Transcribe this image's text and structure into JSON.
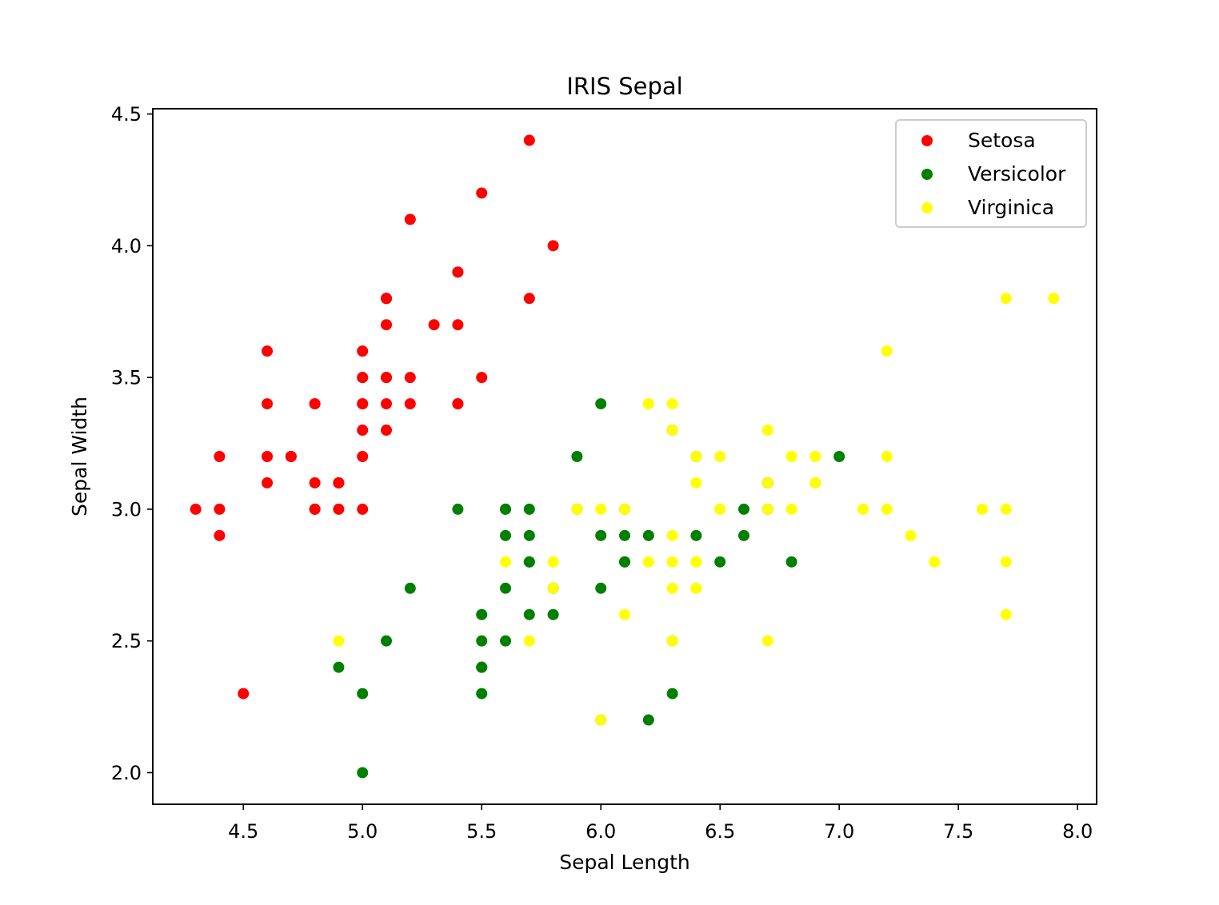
{
  "chart_data": {
    "type": "scatter",
    "title": "IRIS Sepal",
    "xlabel": "Sepal Length",
    "ylabel": "Sepal Width",
    "xlim": [
      4.12,
      8.08
    ],
    "ylim": [
      1.88,
      4.52
    ],
    "xticks": [
      4.5,
      5.0,
      5.5,
      6.0,
      6.5,
      7.0,
      7.5,
      8.0
    ],
    "xtick_labels": [
      "4.5",
      "5.0",
      "5.5",
      "6.0",
      "6.5",
      "7.0",
      "7.5",
      "8.0"
    ],
    "yticks": [
      2.0,
      2.5,
      3.0,
      3.5,
      4.0,
      4.5
    ],
    "ytick_labels": [
      "2.0",
      "2.5",
      "3.0",
      "3.5",
      "4.0",
      "4.5"
    ],
    "grid": false,
    "legend_position": "top-right",
    "series": [
      {
        "name": "Setosa",
        "color": "#ff0000",
        "points": [
          [
            5.1,
            3.5
          ],
          [
            4.9,
            3.0
          ],
          [
            4.7,
            3.2
          ],
          [
            4.6,
            3.1
          ],
          [
            5.0,
            3.6
          ],
          [
            5.4,
            3.9
          ],
          [
            4.6,
            3.4
          ],
          [
            5.0,
            3.4
          ],
          [
            4.4,
            2.9
          ],
          [
            4.9,
            3.1
          ],
          [
            5.4,
            3.7
          ],
          [
            4.8,
            3.4
          ],
          [
            4.8,
            3.0
          ],
          [
            4.3,
            3.0
          ],
          [
            5.8,
            4.0
          ],
          [
            5.7,
            4.4
          ],
          [
            5.4,
            3.9
          ],
          [
            5.1,
            3.5
          ],
          [
            5.7,
            3.8
          ],
          [
            5.1,
            3.8
          ],
          [
            5.4,
            3.4
          ],
          [
            5.1,
            3.7
          ],
          [
            4.6,
            3.6
          ],
          [
            5.1,
            3.3
          ],
          [
            4.8,
            3.4
          ],
          [
            5.0,
            3.0
          ],
          [
            5.0,
            3.4
          ],
          [
            5.2,
            3.5
          ],
          [
            5.2,
            3.4
          ],
          [
            4.7,
            3.2
          ],
          [
            4.8,
            3.1
          ],
          [
            5.4,
            3.4
          ],
          [
            5.2,
            4.1
          ],
          [
            5.5,
            4.2
          ],
          [
            4.9,
            3.1
          ],
          [
            5.0,
            3.2
          ],
          [
            5.5,
            3.5
          ],
          [
            4.9,
            3.1
          ],
          [
            4.4,
            3.0
          ],
          [
            5.1,
            3.4
          ],
          [
            5.0,
            3.5
          ],
          [
            4.5,
            2.3
          ],
          [
            4.4,
            3.2
          ],
          [
            5.0,
            3.5
          ],
          [
            5.1,
            3.8
          ],
          [
            4.8,
            3.0
          ],
          [
            5.1,
            3.8
          ],
          [
            4.6,
            3.2
          ],
          [
            5.3,
            3.7
          ],
          [
            5.0,
            3.3
          ]
        ]
      },
      {
        "name": "Versicolor",
        "color": "#008000",
        "points": [
          [
            7.0,
            3.2
          ],
          [
            6.4,
            3.2
          ],
          [
            6.9,
            3.1
          ],
          [
            5.5,
            2.3
          ],
          [
            6.5,
            2.8
          ],
          [
            5.7,
            2.8
          ],
          [
            6.3,
            3.3
          ],
          [
            4.9,
            2.4
          ],
          [
            6.6,
            2.9
          ],
          [
            5.2,
            2.7
          ],
          [
            5.0,
            2.0
          ],
          [
            5.9,
            3.0
          ],
          [
            6.0,
            2.2
          ],
          [
            6.1,
            2.9
          ],
          [
            5.6,
            2.9
          ],
          [
            6.7,
            3.1
          ],
          [
            5.6,
            3.0
          ],
          [
            5.8,
            2.7
          ],
          [
            6.2,
            2.2
          ],
          [
            5.6,
            2.5
          ],
          [
            5.9,
            3.2
          ],
          [
            6.1,
            2.8
          ],
          [
            6.3,
            2.5
          ],
          [
            6.1,
            2.8
          ],
          [
            6.4,
            2.9
          ],
          [
            6.6,
            3.0
          ],
          [
            6.8,
            2.8
          ],
          [
            6.7,
            3.0
          ],
          [
            6.0,
            2.9
          ],
          [
            5.7,
            2.6
          ],
          [
            5.5,
            2.4
          ],
          [
            5.5,
            2.4
          ],
          [
            5.8,
            2.7
          ],
          [
            6.0,
            2.7
          ],
          [
            5.4,
            3.0
          ],
          [
            6.0,
            3.4
          ],
          [
            6.7,
            3.1
          ],
          [
            6.3,
            2.3
          ],
          [
            5.6,
            3.0
          ],
          [
            5.5,
            2.5
          ],
          [
            5.5,
            2.6
          ],
          [
            6.1,
            3.0
          ],
          [
            5.8,
            2.6
          ],
          [
            5.0,
            2.3
          ],
          [
            5.6,
            2.7
          ],
          [
            5.7,
            3.0
          ],
          [
            5.7,
            2.9
          ],
          [
            6.2,
            2.9
          ],
          [
            5.1,
            2.5
          ],
          [
            5.7,
            2.8
          ]
        ]
      },
      {
        "name": "Virginica",
        "color": "#ffff00",
        "points": [
          [
            6.3,
            3.3
          ],
          [
            5.8,
            2.7
          ],
          [
            7.1,
            3.0
          ],
          [
            6.3,
            2.9
          ],
          [
            6.5,
            3.0
          ],
          [
            7.6,
            3.0
          ],
          [
            4.9,
            2.5
          ],
          [
            7.3,
            2.9
          ],
          [
            6.7,
            2.5
          ],
          [
            7.2,
            3.6
          ],
          [
            6.5,
            3.2
          ],
          [
            6.4,
            2.7
          ],
          [
            6.8,
            3.0
          ],
          [
            5.7,
            2.5
          ],
          [
            5.8,
            2.8
          ],
          [
            6.4,
            3.2
          ],
          [
            6.5,
            3.0
          ],
          [
            7.7,
            3.8
          ],
          [
            7.7,
            2.6
          ],
          [
            6.0,
            2.2
          ],
          [
            6.9,
            3.2
          ],
          [
            5.6,
            2.8
          ],
          [
            7.7,
            2.8
          ],
          [
            6.3,
            2.7
          ],
          [
            6.7,
            3.3
          ],
          [
            7.2,
            3.2
          ],
          [
            6.2,
            2.8
          ],
          [
            6.1,
            3.0
          ],
          [
            6.4,
            2.8
          ],
          [
            7.2,
            3.0
          ],
          [
            7.4,
            2.8
          ],
          [
            7.9,
            3.8
          ],
          [
            6.4,
            2.8
          ],
          [
            6.3,
            2.8
          ],
          [
            6.1,
            2.6
          ],
          [
            7.7,
            3.0
          ],
          [
            6.3,
            3.4
          ],
          [
            6.4,
            3.1
          ],
          [
            6.0,
            3.0
          ],
          [
            6.9,
            3.1
          ],
          [
            6.7,
            3.1
          ],
          [
            6.9,
            3.1
          ],
          [
            5.8,
            2.7
          ],
          [
            6.8,
            3.2
          ],
          [
            6.7,
            3.3
          ],
          [
            6.7,
            3.0
          ],
          [
            6.3,
            2.5
          ],
          [
            6.5,
            3.0
          ],
          [
            6.2,
            3.4
          ],
          [
            5.9,
            3.0
          ]
        ]
      }
    ]
  }
}
